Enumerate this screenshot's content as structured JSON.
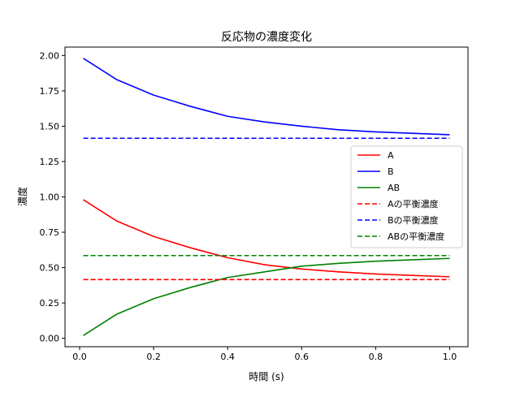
{
  "chart_data": {
    "type": "line",
    "title": "反応物の濃度変化",
    "xlabel": "時間 (s)",
    "ylabel": "濃度",
    "xlim": [
      -0.0395,
      1.0495
    ],
    "ylim": [
      -0.0596,
      2.0596
    ],
    "xticks": [
      0.0,
      0.2,
      0.4,
      0.6,
      0.8,
      1.0
    ],
    "xtick_labels": [
      "0.0",
      "0.2",
      "0.4",
      "0.6",
      "0.8",
      "1.0"
    ],
    "yticks": [
      0.0,
      0.25,
      0.5,
      0.75,
      1.0,
      1.25,
      1.5,
      1.75,
      2.0
    ],
    "ytick_labels": [
      "0.00",
      "0.25",
      "0.50",
      "0.75",
      "1.00",
      "1.25",
      "1.50",
      "1.75",
      "2.00"
    ],
    "grid": false,
    "legend_position": "center-right",
    "series": [
      {
        "name": "A",
        "color": "#ff0000",
        "style": "solid",
        "x": [
          0.01,
          0.1,
          0.2,
          0.3,
          0.4,
          0.5,
          0.6,
          0.7,
          0.8,
          0.9,
          1.0
        ],
        "y": [
          0.98,
          0.83,
          0.72,
          0.64,
          0.57,
          0.52,
          0.49,
          0.47,
          0.455,
          0.445,
          0.435
        ]
      },
      {
        "name": "B",
        "color": "#0000ff",
        "style": "solid",
        "x": [
          0.01,
          0.1,
          0.2,
          0.3,
          0.4,
          0.5,
          0.6,
          0.7,
          0.8,
          0.9,
          1.0
        ],
        "y": [
          1.98,
          1.83,
          1.72,
          1.64,
          1.57,
          1.53,
          1.5,
          1.475,
          1.46,
          1.45,
          1.44
        ]
      },
      {
        "name": "AB",
        "color": "#008000",
        "style": "solid",
        "x": [
          0.01,
          0.1,
          0.2,
          0.3,
          0.4,
          0.5,
          0.6,
          0.7,
          0.8,
          0.9,
          1.0
        ],
        "y": [
          0.02,
          0.17,
          0.28,
          0.36,
          0.43,
          0.47,
          0.51,
          0.53,
          0.545,
          0.555,
          0.565
        ]
      },
      {
        "name": "Aの平衡濃度",
        "color": "#ff0000",
        "style": "dashed",
        "x": [
          0.01,
          1.0
        ],
        "y": [
          0.415,
          0.415
        ]
      },
      {
        "name": "Bの平衡濃度",
        "color": "#0000ff",
        "style": "dashed",
        "x": [
          0.01,
          1.0
        ],
        "y": [
          1.415,
          1.415
        ]
      },
      {
        "name": "ABの平衡濃度",
        "color": "#008000",
        "style": "dashed",
        "x": [
          0.01,
          1.0
        ],
        "y": [
          0.585,
          0.585
        ]
      }
    ]
  }
}
